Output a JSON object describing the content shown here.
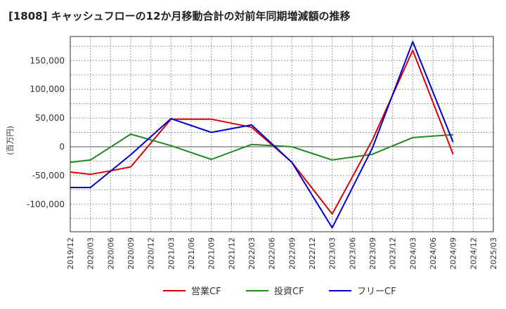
{
  "chart_data": {
    "type": "line",
    "title": "[1808]  キャッシュフローの12か月移動合計の対前年同期増減額の推移",
    "ylabel": "(百万円)",
    "xlabel": "",
    "x": [
      "2019/12",
      "2020/03",
      "2020/06",
      "2020/09",
      "2020/12",
      "2021/03",
      "2021/06",
      "2021/09",
      "2021/12",
      "2022/03",
      "2022/06",
      "2022/09",
      "2022/12",
      "2023/03",
      "2023/06",
      "2023/09",
      "2023/12",
      "2024/03",
      "2024/06",
      "2024/09",
      "2024/12",
      "2025/03"
    ],
    "y_ticks": [
      -100000,
      -50000,
      0,
      50000,
      100000,
      150000
    ],
    "y_tick_labels": [
      "-100,000",
      "-50,000",
      "0",
      "50,000",
      "100,000",
      "150,000"
    ],
    "ylim": [
      -148000,
      192000
    ],
    "grid": true,
    "legend_position": "bottom",
    "series": [
      {
        "name": "営業CF",
        "color": "#dd0000",
        "values": [
          -44000,
          -48000,
          -42000,
          -35000,
          null,
          48000,
          null,
          48000,
          null,
          34000,
          null,
          -27000,
          null,
          -117000,
          null,
          12000,
          null,
          168000,
          null,
          -13000,
          null,
          null
        ]
      },
      {
        "name": "投資CF",
        "color": "#228822",
        "values": [
          -27000,
          -23000,
          null,
          22000,
          null,
          2000,
          null,
          -22000,
          null,
          4000,
          null,
          0,
          null,
          -23000,
          null,
          -13000,
          null,
          16000,
          null,
          21000,
          null,
          null
        ]
      },
      {
        "name": "フリーCF",
        "color": "#0000cc",
        "values": [
          -71000,
          -71000,
          null,
          -14000,
          null,
          49000,
          null,
          25000,
          null,
          38000,
          null,
          -27000,
          null,
          -141000,
          null,
          -2000,
          null,
          183000,
          null,
          8000,
          null,
          null
        ]
      }
    ]
  }
}
